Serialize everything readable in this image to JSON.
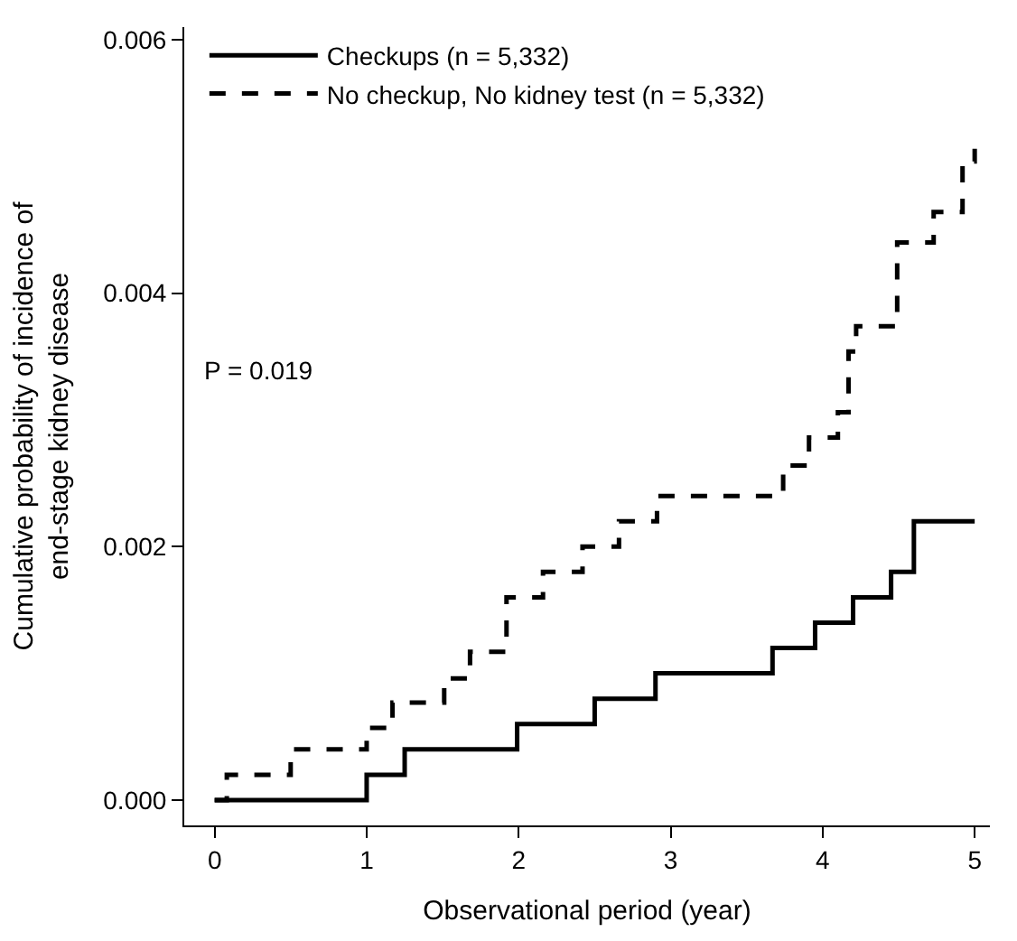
{
  "chart_data": {
    "type": "step",
    "xlabel": "Observational period (year)",
    "ylabel": "Cumulative probability of incidence of\nend-stage kidney disease",
    "series": [
      {
        "name": "Checkups (n = 5,332)",
        "color": "#000000",
        "line_style": "solid",
        "x": [
          0,
          1,
          1.25,
          1.99,
          2.5,
          2.9,
          3.67,
          3.95,
          4.2,
          4.45,
          4.6,
          5
        ],
        "values": [
          0,
          0.0002,
          0.0004,
          0.0006,
          0.0008,
          0.001,
          0.0012,
          0.0014,
          0.0016,
          0.0018,
          0.0022,
          0.0022
        ]
      },
      {
        "name": "No checkup, No kidney test (n = 5,332)",
        "color": "#000000",
        "line_style": "dashed",
        "x": [
          0,
          0.08,
          0.5,
          1.0,
          1.17,
          1.51,
          1.68,
          1.92,
          2.16,
          2.42,
          2.66,
          2.91,
          3.74,
          3.91,
          4.1,
          4.17,
          4.22,
          4.49,
          4.73,
          4.92,
          5
        ],
        "values": [
          0,
          0.0002,
          0.0004,
          0.00057,
          0.00077,
          0.00096,
          0.00117,
          0.0016,
          0.0018,
          0.002,
          0.0022,
          0.0024,
          0.00264,
          0.00286,
          0.00306,
          0.00354,
          0.00374,
          0.0044,
          0.00464,
          0.00504,
          0.00514
        ]
      }
    ],
    "annotations": [
      "P = 0.019"
    ],
    "xlim": [
      -0.2,
      5.1
    ],
    "xticks": [
      0,
      1,
      2,
      3,
      4,
      5
    ],
    "ylim": [
      -0.0002,
      0.0061
    ],
    "yticks": [
      {
        "value": 0,
        "label": "0.000"
      },
      {
        "value": 0.002,
        "label": "0.002"
      },
      {
        "value": 0.004,
        "label": "0.004"
      },
      {
        "value": 0.006,
        "label": "0.006"
      }
    ],
    "legend": "top left"
  }
}
